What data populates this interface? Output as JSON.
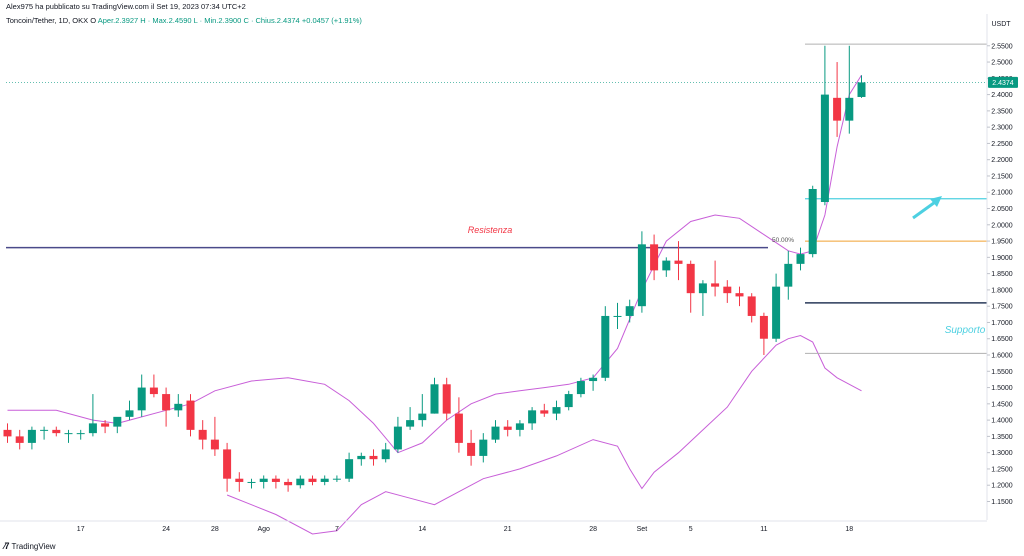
{
  "header": {
    "publisher": "Alex975 ha pubblicato su TradingView.com il Set 19, 2023 07:34 UTC+2",
    "symbol": "Toncoin/Tether, 1D, OKX",
    "open_label": "O",
    "open": "Aper.2.3927",
    "high": "H · Max.2.4590",
    "low": "L · Min.2.3900",
    "close": "C · Chius.2.4374",
    "change": "+0.0457 (+1.91%)"
  },
  "currency": "USDT",
  "last_price_label": "2.4374",
  "logo_text": "TradingView",
  "annotations": {
    "resistance": "Resistenza",
    "support": "Supporto",
    "fib": "50.00%"
  },
  "colors": {
    "up": "#089981",
    "down": "#f23645",
    "bollinger": "#c85fd8",
    "resistance_line": "#4a4a8a",
    "support_line": "#2a3a5a",
    "cyan_line": "#4dd0e1",
    "fib_line": "#f0a030",
    "grey_line": "#b0b0b0",
    "annotation_red": "#f23645",
    "annotation_cyan": "#4dd0e1"
  },
  "chart_data": {
    "type": "candlestick",
    "ylim": [
      1.13,
      2.58
    ],
    "y_ticks": [
      "2.5500",
      "2.5000",
      "2.4500",
      "2.4000",
      "2.3500",
      "2.3000",
      "2.2500",
      "2.2000",
      "2.1500",
      "2.1000",
      "2.0500",
      "2.0000",
      "1.9500",
      "1.9000",
      "1.8500",
      "1.8000",
      "1.7500",
      "1.7000",
      "1.6500",
      "1.6000",
      "1.5500",
      "1.5000",
      "1.4500",
      "1.4000",
      "1.3500",
      "1.3000",
      "1.2500",
      "1.2000",
      "1.1500"
    ],
    "x_ticks": [
      {
        "label": "17",
        "day": 17
      },
      {
        "label": "24",
        "day": 24
      },
      {
        "label": "28",
        "day": 28
      },
      {
        "label": "Ago",
        "day": 32
      },
      {
        "label": "7",
        "day": 38
      },
      {
        "label": "14",
        "day": 45
      },
      {
        "label": "21",
        "day": 52
      },
      {
        "label": "28",
        "day": 59
      },
      {
        "label": "Set",
        "day": 63
      },
      {
        "label": "5",
        "day": 67
      },
      {
        "label": "11",
        "day": 73
      },
      {
        "label": "18",
        "day": 80
      }
    ],
    "candles": [
      {
        "day": 11,
        "o": 1.37,
        "h": 1.39,
        "l": 1.33,
        "c": 1.35
      },
      {
        "day": 12,
        "o": 1.35,
        "h": 1.37,
        "l": 1.31,
        "c": 1.33
      },
      {
        "day": 13,
        "o": 1.33,
        "h": 1.38,
        "l": 1.31,
        "c": 1.37
      },
      {
        "day": 14,
        "o": 1.37,
        "h": 1.38,
        "l": 1.34,
        "c": 1.37
      },
      {
        "day": 15,
        "o": 1.37,
        "h": 1.38,
        "l": 1.35,
        "c": 1.36
      },
      {
        "day": 16,
        "o": 1.36,
        "h": 1.37,
        "l": 1.33,
        "c": 1.36
      },
      {
        "day": 17,
        "o": 1.36,
        "h": 1.37,
        "l": 1.34,
        "c": 1.36
      },
      {
        "day": 18,
        "o": 1.36,
        "h": 1.48,
        "l": 1.35,
        "c": 1.39
      },
      {
        "day": 19,
        "o": 1.39,
        "h": 1.4,
        "l": 1.36,
        "c": 1.38
      },
      {
        "day": 20,
        "o": 1.38,
        "h": 1.4,
        "l": 1.36,
        "c": 1.41
      },
      {
        "day": 21,
        "o": 1.41,
        "h": 1.46,
        "l": 1.4,
        "c": 1.43
      },
      {
        "day": 22,
        "o": 1.43,
        "h": 1.54,
        "l": 1.41,
        "c": 1.5
      },
      {
        "day": 23,
        "o": 1.5,
        "h": 1.54,
        "l": 1.47,
        "c": 1.48
      },
      {
        "day": 24,
        "o": 1.48,
        "h": 1.5,
        "l": 1.38,
        "c": 1.43
      },
      {
        "day": 25,
        "o": 1.43,
        "h": 1.48,
        "l": 1.41,
        "c": 1.45
      },
      {
        "day": 26,
        "o": 1.46,
        "h": 1.48,
        "l": 1.35,
        "c": 1.37
      },
      {
        "day": 27,
        "o": 1.37,
        "h": 1.4,
        "l": 1.31,
        "c": 1.34
      },
      {
        "day": 28,
        "o": 1.34,
        "h": 1.41,
        "l": 1.29,
        "c": 1.31
      },
      {
        "day": 29,
        "o": 1.31,
        "h": 1.33,
        "l": 1.18,
        "c": 1.22
      },
      {
        "day": 30,
        "o": 1.22,
        "h": 1.24,
        "l": 1.18,
        "c": 1.21
      },
      {
        "day": 31,
        "o": 1.21,
        "h": 1.22,
        "l": 1.19,
        "c": 1.21
      },
      {
        "day": 32,
        "o": 1.21,
        "h": 1.23,
        "l": 1.19,
        "c": 1.22
      },
      {
        "day": 33,
        "o": 1.22,
        "h": 1.23,
        "l": 1.19,
        "c": 1.21
      },
      {
        "day": 34,
        "o": 1.21,
        "h": 1.22,
        "l": 1.18,
        "c": 1.2
      },
      {
        "day": 35,
        "o": 1.2,
        "h": 1.23,
        "l": 1.19,
        "c": 1.22
      },
      {
        "day": 36,
        "o": 1.22,
        "h": 1.23,
        "l": 1.2,
        "c": 1.21
      },
      {
        "day": 37,
        "o": 1.21,
        "h": 1.23,
        "l": 1.2,
        "c": 1.22
      },
      {
        "day": 38,
        "o": 1.22,
        "h": 1.23,
        "l": 1.21,
        "c": 1.22
      },
      {
        "day": 39,
        "o": 1.22,
        "h": 1.3,
        "l": 1.21,
        "c": 1.28
      },
      {
        "day": 40,
        "o": 1.28,
        "h": 1.3,
        "l": 1.26,
        "c": 1.29
      },
      {
        "day": 41,
        "o": 1.29,
        "h": 1.31,
        "l": 1.26,
        "c": 1.28
      },
      {
        "day": 42,
        "o": 1.28,
        "h": 1.33,
        "l": 1.27,
        "c": 1.31
      },
      {
        "day": 43,
        "o": 1.31,
        "h": 1.41,
        "l": 1.3,
        "c": 1.38
      },
      {
        "day": 44,
        "o": 1.38,
        "h": 1.44,
        "l": 1.37,
        "c": 1.4
      },
      {
        "day": 45,
        "o": 1.4,
        "h": 1.48,
        "l": 1.38,
        "c": 1.42
      },
      {
        "day": 46,
        "o": 1.42,
        "h": 1.53,
        "l": 1.42,
        "c": 1.51
      },
      {
        "day": 47,
        "o": 1.51,
        "h": 1.53,
        "l": 1.4,
        "c": 1.42
      },
      {
        "day": 48,
        "o": 1.42,
        "h": 1.47,
        "l": 1.3,
        "c": 1.33
      },
      {
        "day": 49,
        "o": 1.33,
        "h": 1.37,
        "l": 1.26,
        "c": 1.29
      },
      {
        "day": 50,
        "o": 1.29,
        "h": 1.36,
        "l": 1.27,
        "c": 1.34
      },
      {
        "day": 51,
        "o": 1.34,
        "h": 1.4,
        "l": 1.33,
        "c": 1.38
      },
      {
        "day": 52,
        "o": 1.38,
        "h": 1.4,
        "l": 1.35,
        "c": 1.37
      },
      {
        "day": 53,
        "o": 1.37,
        "h": 1.4,
        "l": 1.35,
        "c": 1.39
      },
      {
        "day": 54,
        "o": 1.39,
        "h": 1.44,
        "l": 1.37,
        "c": 1.43
      },
      {
        "day": 55,
        "o": 1.43,
        "h": 1.45,
        "l": 1.41,
        "c": 1.42
      },
      {
        "day": 56,
        "o": 1.42,
        "h": 1.46,
        "l": 1.4,
        "c": 1.44
      },
      {
        "day": 57,
        "o": 1.44,
        "h": 1.49,
        "l": 1.43,
        "c": 1.48
      },
      {
        "day": 58,
        "o": 1.48,
        "h": 1.53,
        "l": 1.47,
        "c": 1.52
      },
      {
        "day": 59,
        "o": 1.52,
        "h": 1.54,
        "l": 1.49,
        "c": 1.53
      },
      {
        "day": 60,
        "o": 1.53,
        "h": 1.75,
        "l": 1.52,
        "c": 1.72
      },
      {
        "day": 61,
        "o": 1.72,
        "h": 1.76,
        "l": 1.68,
        "c": 1.72
      },
      {
        "day": 62,
        "o": 1.72,
        "h": 1.77,
        "l": 1.7,
        "c": 1.75
      },
      {
        "day": 63,
        "o": 1.75,
        "h": 1.98,
        "l": 1.73,
        "c": 1.94
      },
      {
        "day": 64,
        "o": 1.94,
        "h": 1.97,
        "l": 1.83,
        "c": 1.86
      },
      {
        "day": 65,
        "o": 1.86,
        "h": 1.9,
        "l": 1.84,
        "c": 1.89
      },
      {
        "day": 66,
        "o": 1.89,
        "h": 1.95,
        "l": 1.83,
        "c": 1.88
      },
      {
        "day": 67,
        "o": 1.88,
        "h": 1.89,
        "l": 1.73,
        "c": 1.79
      },
      {
        "day": 68,
        "o": 1.79,
        "h": 1.83,
        "l": 1.72,
        "c": 1.82
      },
      {
        "day": 69,
        "o": 1.82,
        "h": 1.89,
        "l": 1.78,
        "c": 1.81
      },
      {
        "day": 70,
        "o": 1.81,
        "h": 1.83,
        "l": 1.76,
        "c": 1.79
      },
      {
        "day": 71,
        "o": 1.79,
        "h": 1.81,
        "l": 1.75,
        "c": 1.78
      },
      {
        "day": 72,
        "o": 1.78,
        "h": 1.79,
        "l": 1.7,
        "c": 1.72
      },
      {
        "day": 73,
        "o": 1.72,
        "h": 1.73,
        "l": 1.6,
        "c": 1.65
      },
      {
        "day": 74,
        "o": 1.65,
        "h": 1.85,
        "l": 1.64,
        "c": 1.81
      },
      {
        "day": 75,
        "o": 1.81,
        "h": 1.92,
        "l": 1.77,
        "c": 1.88
      },
      {
        "day": 76,
        "o": 1.88,
        "h": 1.93,
        "l": 1.86,
        "c": 1.91
      },
      {
        "day": 77,
        "o": 1.91,
        "h": 2.12,
        "l": 1.9,
        "c": 2.11
      },
      {
        "day": 78,
        "o": 2.07,
        "h": 2.55,
        "l": 2.06,
        "c": 2.4
      },
      {
        "day": 79,
        "o": 2.39,
        "h": 2.5,
        "l": 2.27,
        "c": 2.32
      },
      {
        "day": 80,
        "o": 2.32,
        "h": 2.55,
        "l": 2.28,
        "c": 2.39
      },
      {
        "day": 81,
        "o": 2.3927,
        "h": 2.459,
        "l": 2.39,
        "c": 2.4374
      }
    ],
    "bollinger": {
      "upper": [
        [
          11,
          1.43
        ],
        [
          15,
          1.43
        ],
        [
          18,
          1.4
        ],
        [
          20,
          1.39
        ],
        [
          22,
          1.41
        ],
        [
          24,
          1.43
        ],
        [
          26,
          1.45
        ],
        [
          28,
          1.49
        ],
        [
          31,
          1.52
        ],
        [
          34,
          1.53
        ],
        [
          37,
          1.51
        ],
        [
          39,
          1.46
        ],
        [
          41,
          1.39
        ],
        [
          43,
          1.3
        ],
        [
          45,
          1.33
        ],
        [
          47,
          1.4
        ],
        [
          49,
          1.45
        ],
        [
          51,
          1.48
        ],
        [
          53,
          1.49
        ],
        [
          55,
          1.5
        ],
        [
          57,
          1.51
        ],
        [
          59,
          1.53
        ],
        [
          61,
          1.62
        ],
        [
          63,
          1.8
        ],
        [
          65,
          1.95
        ],
        [
          67,
          2.01
        ],
        [
          69,
          2.03
        ],
        [
          71,
          2.02
        ],
        [
          73,
          1.97
        ],
        [
          75,
          1.92
        ],
        [
          76,
          1.91
        ],
        [
          77,
          1.92
        ],
        [
          78,
          2.03
        ],
        [
          79,
          2.24
        ],
        [
          80,
          2.4
        ],
        [
          81,
          2.46
        ]
      ],
      "middle": [
        [
          11,
          1.35
        ],
        [
          16,
          1.35
        ],
        [
          19,
          1.36
        ],
        [
          22,
          1.39
        ],
        [
          25,
          1.4
        ],
        [
          28,
          1.37
        ],
        [
          31,
          1.3
        ],
        [
          34,
          1.24
        ],
        [
          37,
          1.22
        ],
        [
          40,
          1.24
        ],
        [
          43,
          1.3
        ],
        [
          46,
          1.37
        ],
        [
          49,
          1.39
        ],
        [
          52,
          1.39
        ],
        [
          55,
          1.42
        ],
        [
          58,
          1.47
        ],
        [
          61,
          1.57
        ],
        [
          63,
          1.66
        ],
        [
          66,
          1.76
        ],
        [
          68,
          1.8
        ],
        [
          70,
          1.82
        ],
        [
          72,
          1.8
        ],
        [
          74,
          1.78
        ],
        [
          76,
          1.8
        ],
        [
          77,
          1.84
        ],
        [
          78,
          1.93
        ],
        [
          79,
          2.04
        ],
        [
          80,
          2.16
        ],
        [
          81,
          2.3
        ]
      ],
      "lower": [
        [
          29,
          1.17
        ],
        [
          33,
          1.11
        ],
        [
          36,
          1.05
        ],
        [
          38,
          1.06
        ],
        [
          40,
          1.14
        ],
        [
          42,
          1.18
        ],
        [
          44,
          1.16
        ],
        [
          46,
          1.14
        ],
        [
          48,
          1.18
        ],
        [
          50,
          1.22
        ],
        [
          53,
          1.25
        ],
        [
          56,
          1.29
        ],
        [
          59,
          1.34
        ],
        [
          61,
          1.32
        ],
        [
          62,
          1.25
        ],
        [
          63,
          1.19
        ],
        [
          64,
          1.24
        ],
        [
          66,
          1.3
        ],
        [
          68,
          1.37
        ],
        [
          70,
          1.44
        ],
        [
          72,
          1.55
        ],
        [
          74,
          1.63
        ],
        [
          75,
          1.65
        ],
        [
          76,
          1.66
        ],
        [
          77,
          1.64
        ],
        [
          78,
          1.56
        ],
        [
          79,
          1.53
        ],
        [
          80,
          1.51
        ],
        [
          81,
          1.49
        ]
      ]
    },
    "levels": {
      "resistance": 1.93,
      "support": 1.76,
      "cyan": 2.08,
      "fib_50": 1.95,
      "grey_top": 2.555,
      "grey_bottom": 1.605,
      "last_price": 2.4374
    }
  }
}
